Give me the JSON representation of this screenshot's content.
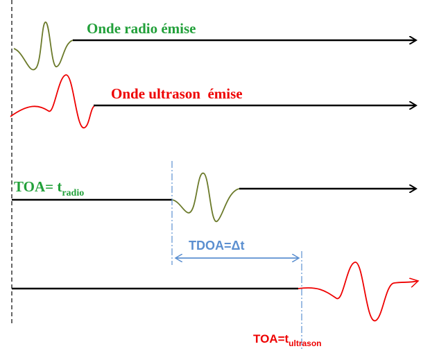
{
  "labels": [
    {
      "text": "Onde radio émise"
    },
    {
      "text": "Onde ultrason  émise"
    },
    {
      "text": "TOA= t",
      "sub": "radio"
    },
    {
      "text": "TDOA=Δt"
    },
    {
      "text": "TOA=t",
      "sub": "ultrason"
    }
  ]
}
